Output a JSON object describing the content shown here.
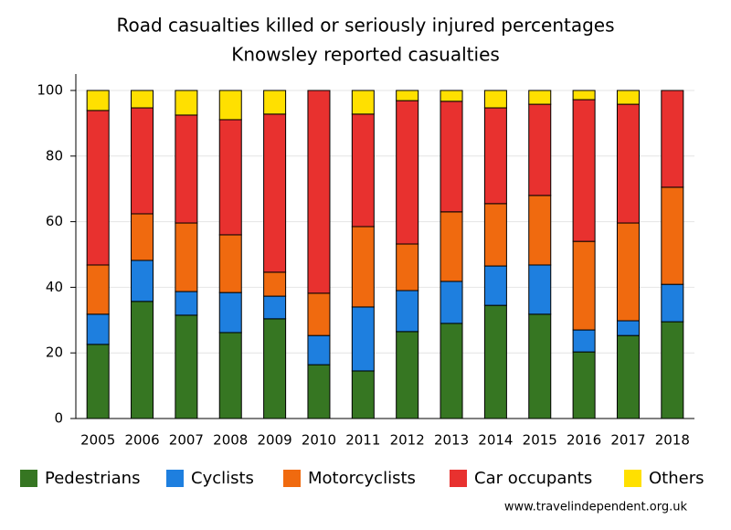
{
  "chart_data": {
    "type": "stacked-bar",
    "title": "Road casualties killed or seriously injured percentages",
    "subtitle": "Knowsley reported casualties",
    "source": "www.travelindependent.org.uk",
    "categories": [
      "2005",
      "2006",
      "2007",
      "2008",
      "2009",
      "2010",
      "2011",
      "2012",
      "2013",
      "2014",
      "2015",
      "2016",
      "2017",
      "2018"
    ],
    "series": [
      {
        "name": "Pedestrians",
        "color": "#367622",
        "values": [
          22.6,
          35.7,
          31.5,
          26.2,
          30.4,
          16.4,
          14.5,
          26.5,
          29,
          34.5,
          31.8,
          20.3,
          25.3,
          29.5
        ]
      },
      {
        "name": "Cyclists",
        "color": "#1e7fdf",
        "values": [
          9.2,
          12.5,
          7.2,
          12.2,
          6.9,
          8.9,
          19.5,
          12.5,
          12.8,
          12,
          15,
          6.7,
          4.5,
          11.4
        ]
      },
      {
        "name": "Motorcyclists",
        "color": "#f06a0f",
        "values": [
          15,
          14.2,
          20.9,
          17.6,
          7.3,
          12.9,
          24.5,
          14.2,
          21.2,
          19,
          21.2,
          27,
          29.8,
          29.6
        ]
      },
      {
        "name": "Car occupants",
        "color": "#e8312f",
        "values": [
          47.1,
          32.3,
          32.9,
          35.1,
          48.2,
          61.8,
          34.3,
          43.7,
          33.7,
          29.2,
          27.8,
          43.2,
          36.2,
          29.5
        ]
      },
      {
        "name": "Others",
        "color": "#ffe000",
        "values": [
          6.1,
          5.3,
          7.5,
          8.9,
          7.2,
          0,
          7.2,
          3.1,
          3.3,
          5.3,
          4.2,
          2.8,
          4.2,
          0
        ]
      }
    ],
    "ylim": [
      0,
      100
    ],
    "yticks": [
      0,
      20,
      40,
      60,
      80,
      100
    ],
    "grid": true,
    "legend": "bottom"
  }
}
